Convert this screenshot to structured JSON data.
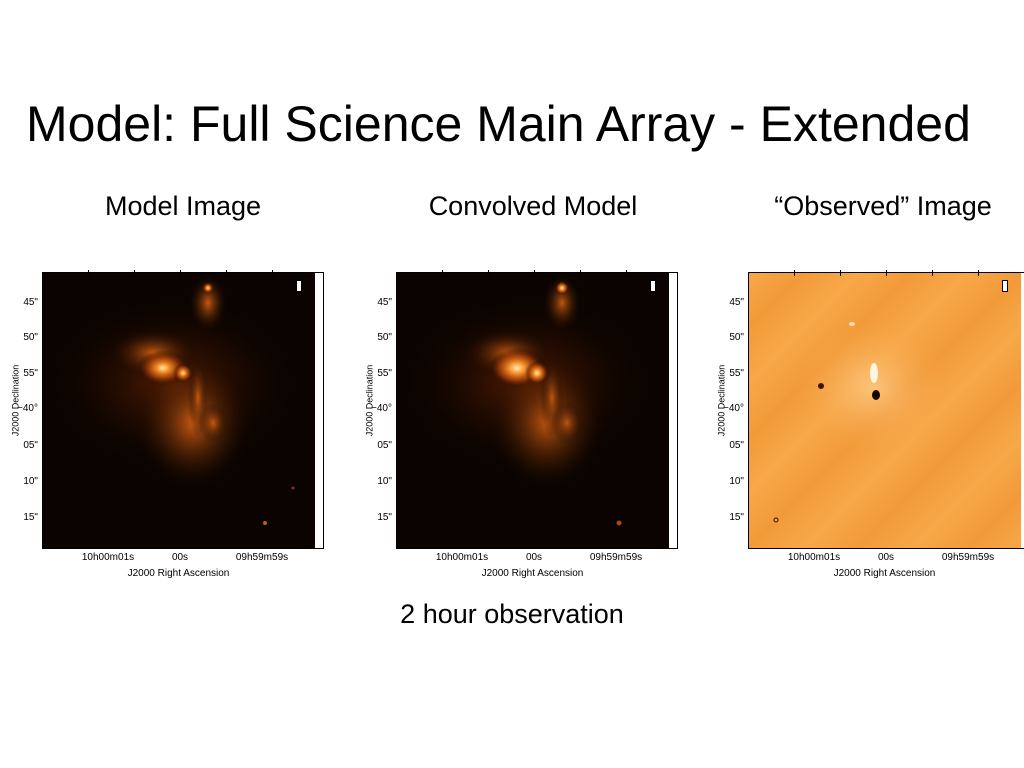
{
  "slide": {
    "title": "Model: Full Science Main Array - Extended",
    "caption": "2 hour observation"
  },
  "panels": [
    {
      "subtitle": "Model Image",
      "kind": "dark",
      "y_ticks": [
        "45\"",
        "50\"",
        "55\"",
        "−40°",
        "05\"",
        "10\"",
        "15\""
      ],
      "x_ticks": [
        "10h00m01s",
        "00s",
        "09h59m59s"
      ],
      "x_axis_title": "J2000 Right Ascension",
      "y_axis_title": "J2000 Declination"
    },
    {
      "subtitle": "Convolved Model",
      "kind": "dark",
      "y_ticks": [
        "45\"",
        "50\"",
        "55\"",
        "−40°",
        "05\"",
        "10\"",
        "15\""
      ],
      "x_ticks": [
        "10h00m01s",
        "00s",
        "09h59m59s"
      ],
      "x_axis_title": "J2000 Right Ascension",
      "y_axis_title": "J2000 Declination"
    },
    {
      "subtitle": "“Observed” Image",
      "kind": "orange",
      "y_ticks": [
        "45\"",
        "50\"",
        "55\"",
        "−40°",
        "05\"",
        "10\"",
        "15\""
      ],
      "x_ticks": [
        "10h00m01s",
        "00s",
        "09h59m59s"
      ],
      "x_axis_title": "J2000 Right Ascension",
      "y_axis_title": "J2000 Declination"
    }
  ],
  "colors": {
    "dark_background": "#0a0300",
    "emission": "#e8650a",
    "observed_background": "#f5a040"
  }
}
